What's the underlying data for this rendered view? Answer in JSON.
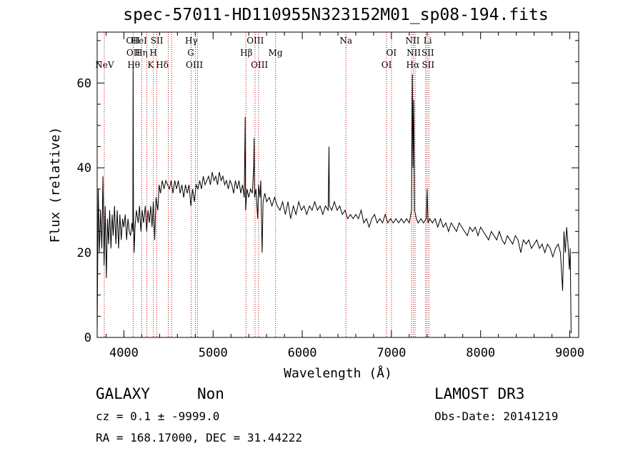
{
  "chart_data": {
    "type": "line",
    "title": "spec-57011-HD110955N323152M01_sp08-194.fits",
    "xlabel": "Wavelength (Å)",
    "ylabel": "Flux (relative)",
    "xlim": [
      3700,
      9100
    ],
    "ylim": [
      0,
      72
    ],
    "x_ticks": [
      4000,
      5000,
      6000,
      7000,
      8000,
      9000
    ],
    "y_ticks": [
      0,
      20,
      40,
      60
    ],
    "series": [
      {
        "name": "spectrum",
        "points": [
          [
            3700,
            1
          ],
          [
            3712,
            35
          ],
          [
            3725,
            20
          ],
          [
            3738,
            30
          ],
          [
            3752,
            21
          ],
          [
            3765,
            38
          ],
          [
            3778,
            17
          ],
          [
            3790,
            31
          ],
          [
            3803,
            14
          ],
          [
            3815,
            28
          ],
          [
            3828,
            22
          ],
          [
            3840,
            30
          ],
          [
            3855,
            21
          ],
          [
            3868,
            29
          ],
          [
            3880,
            24
          ],
          [
            3895,
            31
          ],
          [
            3910,
            22
          ],
          [
            3925,
            30
          ],
          [
            3940,
            21
          ],
          [
            3955,
            29
          ],
          [
            3970,
            23
          ],
          [
            3985,
            28
          ],
          [
            4000,
            26
          ],
          [
            4015,
            29
          ],
          [
            4030,
            23
          ],
          [
            4045,
            28
          ],
          [
            4060,
            25
          ],
          [
            4075,
            24
          ],
          [
            4090,
            27
          ],
          [
            4100,
            25
          ],
          [
            4103,
            65
          ],
          [
            4107,
            30
          ],
          [
            4115,
            20
          ],
          [
            4125,
            26
          ],
          [
            4140,
            30
          ],
          [
            4160,
            27
          ],
          [
            4175,
            31
          ],
          [
            4190,
            25
          ],
          [
            4205,
            30
          ],
          [
            4220,
            27
          ],
          [
            4240,
            31
          ],
          [
            4255,
            25
          ],
          [
            4270,
            30
          ],
          [
            4285,
            27
          ],
          [
            4300,
            31
          ],
          [
            4315,
            26
          ],
          [
            4330,
            32
          ],
          [
            4345,
            23
          ],
          [
            4360,
            33
          ],
          [
            4380,
            30
          ],
          [
            4395,
            36
          ],
          [
            4410,
            34
          ],
          [
            4430,
            37
          ],
          [
            4450,
            35
          ],
          [
            4470,
            37
          ],
          [
            4490,
            36
          ],
          [
            4510,
            35
          ],
          [
            4530,
            37
          ],
          [
            4550,
            34
          ],
          [
            4570,
            37
          ],
          [
            4590,
            35
          ],
          [
            4610,
            37
          ],
          [
            4630,
            34
          ],
          [
            4650,
            36
          ],
          [
            4670,
            33
          ],
          [
            4690,
            36
          ],
          [
            4710,
            34
          ],
          [
            4730,
            36
          ],
          [
            4750,
            31
          ],
          [
            4770,
            35
          ],
          [
            4790,
            32
          ],
          [
            4810,
            36
          ],
          [
            4830,
            35
          ],
          [
            4850,
            37
          ],
          [
            4870,
            35
          ],
          [
            4890,
            38
          ],
          [
            4910,
            36
          ],
          [
            4930,
            37
          ],
          [
            4950,
            38
          ],
          [
            4970,
            36
          ],
          [
            4990,
            39
          ],
          [
            5010,
            37
          ],
          [
            5030,
            38
          ],
          [
            5050,
            36
          ],
          [
            5070,
            39
          ],
          [
            5090,
            37
          ],
          [
            5110,
            38
          ],
          [
            5130,
            36
          ],
          [
            5150,
            37
          ],
          [
            5170,
            35
          ],
          [
            5190,
            37
          ],
          [
            5210,
            36
          ],
          [
            5230,
            34
          ],
          [
            5250,
            37
          ],
          [
            5270,
            35
          ],
          [
            5290,
            37
          ],
          [
            5310,
            34
          ],
          [
            5330,
            36
          ],
          [
            5350,
            33
          ],
          [
            5360,
            52
          ],
          [
            5365,
            30
          ],
          [
            5380,
            35
          ],
          [
            5400,
            33
          ],
          [
            5420,
            35
          ],
          [
            5440,
            34
          ],
          [
            5455,
            40
          ],
          [
            5460,
            47
          ],
          [
            5465,
            33
          ],
          [
            5480,
            35
          ],
          [
            5500,
            28
          ],
          [
            5510,
            36
          ],
          [
            5525,
            33
          ],
          [
            5535,
            37
          ],
          [
            5550,
            20
          ],
          [
            5560,
            32
          ],
          [
            5580,
            34
          ],
          [
            5600,
            32
          ],
          [
            5630,
            33
          ],
          [
            5660,
            31
          ],
          [
            5690,
            33
          ],
          [
            5720,
            31
          ],
          [
            5750,
            30
          ],
          [
            5780,
            32
          ],
          [
            5810,
            29
          ],
          [
            5840,
            32
          ],
          [
            5870,
            28
          ],
          [
            5900,
            31
          ],
          [
            5930,
            29
          ],
          [
            5960,
            32
          ],
          [
            5990,
            30
          ],
          [
            6020,
            31
          ],
          [
            6050,
            29
          ],
          [
            6080,
            31
          ],
          [
            6110,
            30
          ],
          [
            6140,
            32
          ],
          [
            6170,
            30
          ],
          [
            6200,
            31
          ],
          [
            6230,
            29
          ],
          [
            6260,
            31
          ],
          [
            6290,
            30
          ],
          [
            6300,
            45
          ],
          [
            6305,
            31
          ],
          [
            6330,
            30
          ],
          [
            6360,
            32
          ],
          [
            6390,
            30
          ],
          [
            6420,
            31
          ],
          [
            6450,
            29
          ],
          [
            6480,
            30
          ],
          [
            6510,
            28
          ],
          [
            6540,
            29
          ],
          [
            6570,
            28
          ],
          [
            6600,
            29
          ],
          [
            6630,
            28
          ],
          [
            6660,
            30
          ],
          [
            6690,
            27
          ],
          [
            6720,
            28
          ],
          [
            6750,
            26
          ],
          [
            6780,
            28
          ],
          [
            6810,
            29
          ],
          [
            6840,
            27
          ],
          [
            6870,
            28
          ],
          [
            6900,
            27
          ],
          [
            6930,
            29
          ],
          [
            6960,
            27
          ],
          [
            6990,
            28
          ],
          [
            7020,
            27
          ],
          [
            7050,
            28
          ],
          [
            7080,
            27
          ],
          [
            7110,
            28
          ],
          [
            7140,
            27
          ],
          [
            7170,
            28
          ],
          [
            7200,
            27
          ],
          [
            7225,
            30
          ],
          [
            7235,
            62
          ],
          [
            7242,
            40
          ],
          [
            7250,
            56
          ],
          [
            7260,
            30
          ],
          [
            7280,
            28
          ],
          [
            7300,
            27
          ],
          [
            7330,
            28
          ],
          [
            7360,
            27
          ],
          [
            7390,
            28
          ],
          [
            7400,
            35
          ],
          [
            7410,
            27
          ],
          [
            7430,
            28
          ],
          [
            7460,
            27
          ],
          [
            7490,
            28
          ],
          [
            7520,
            26
          ],
          [
            7550,
            28
          ],
          [
            7580,
            26
          ],
          [
            7610,
            27
          ],
          [
            7640,
            25
          ],
          [
            7670,
            27
          ],
          [
            7700,
            26
          ],
          [
            7730,
            25
          ],
          [
            7760,
            27
          ],
          [
            7790,
            26
          ],
          [
            7820,
            25
          ],
          [
            7850,
            24
          ],
          [
            7880,
            26
          ],
          [
            7910,
            25
          ],
          [
            7940,
            26
          ],
          [
            7970,
            24
          ],
          [
            8000,
            26
          ],
          [
            8030,
            25
          ],
          [
            8060,
            24
          ],
          [
            8090,
            23
          ],
          [
            8120,
            25
          ],
          [
            8150,
            24
          ],
          [
            8180,
            23
          ],
          [
            8210,
            25
          ],
          [
            8240,
            23
          ],
          [
            8270,
            22
          ],
          [
            8300,
            24
          ],
          [
            8330,
            23
          ],
          [
            8360,
            22
          ],
          [
            8390,
            24
          ],
          [
            8420,
            23
          ],
          [
            8450,
            20
          ],
          [
            8480,
            23
          ],
          [
            8510,
            22
          ],
          [
            8540,
            23
          ],
          [
            8570,
            21
          ],
          [
            8600,
            22
          ],
          [
            8630,
            23
          ],
          [
            8660,
            21
          ],
          [
            8690,
            22
          ],
          [
            8720,
            20
          ],
          [
            8750,
            22
          ],
          [
            8780,
            21
          ],
          [
            8810,
            19
          ],
          [
            8840,
            21
          ],
          [
            8870,
            22
          ],
          [
            8895,
            20
          ],
          [
            8920,
            11
          ],
          [
            8935,
            25
          ],
          [
            8950,
            20
          ],
          [
            8965,
            26
          ],
          [
            8980,
            22
          ],
          [
            8995,
            16
          ],
          [
            9005,
            21
          ],
          [
            9015,
            1
          ]
        ]
      }
    ],
    "lines": [
      {
        "label": "NeV",
        "wl": 3783,
        "row": 2
      },
      {
        "label": "OII",
        "wl": 4102,
        "row": 0
      },
      {
        "label": "OII",
        "wl": 4105,
        "row": 1
      },
      {
        "label": "Hθ",
        "wl": 4110,
        "row": 2
      },
      {
        "label": "HeI",
        "wl": 4170,
        "row": 0
      },
      {
        "label": "Hη",
        "wl": 4196,
        "row": 1
      },
      {
        "label": "K",
        "wl": 4300,
        "row": 2
      },
      {
        "label": "H",
        "wl": 4330,
        "row": 1
      },
      {
        "label": "SII",
        "wl": 4370,
        "row": 0
      },
      {
        "label": "Hδ",
        "wl": 4430,
        "row": 2
      },
      {
        "label": "Hγ",
        "wl": 4756,
        "row": 0
      },
      {
        "label": "G",
        "wl": 4750,
        "row": 1
      },
      {
        "label": "OIII",
        "wl": 4790,
        "row": 2
      },
      {
        "label": "Hβ",
        "wl": 5373,
        "row": 1
      },
      {
        "label": "OIII",
        "wl": 5473,
        "row": 0
      },
      {
        "label": "OIII",
        "wl": 5520,
        "row": 2
      },
      {
        "label": "Mg",
        "wl": 5700,
        "row": 1
      },
      {
        "label": "Na",
        "wl": 6490,
        "row": 0
      },
      {
        "label": "OI",
        "wl": 7000,
        "row": 1
      },
      {
        "label": "OI",
        "wl": 6945,
        "row": 2
      },
      {
        "label": "NII",
        "wl": 7237,
        "row": 0
      },
      {
        "label": "Li",
        "wl": 7407,
        "row": 0
      },
      {
        "label": "NII",
        "wl": 7250,
        "row": 1
      },
      {
        "label": "SII",
        "wl": 7408,
        "row": 1
      },
      {
        "label": "Hα",
        "wl": 7240,
        "row": 2
      },
      {
        "label": "SII",
        "wl": 7412,
        "row": 2
      }
    ],
    "line_positions_wl": [
      3780,
      4104,
      4200,
      4256,
      4330,
      4368,
      4498,
      4535,
      4756,
      4801,
      4825,
      5368,
      5470,
      5510,
      5700,
      6490,
      6944,
      7000,
      7225,
      7245,
      7265,
      7383,
      7400,
      7420
    ]
  },
  "info": {
    "object_class": "GALAXY",
    "subclass": "Non",
    "cz_label": "cz = 0.1 ± -9999.0",
    "coords": "RA = 168.17000, DEC =  31.44222",
    "survey": "LAMOST DR3",
    "obs_date": "Obs-Date: 20141219"
  }
}
